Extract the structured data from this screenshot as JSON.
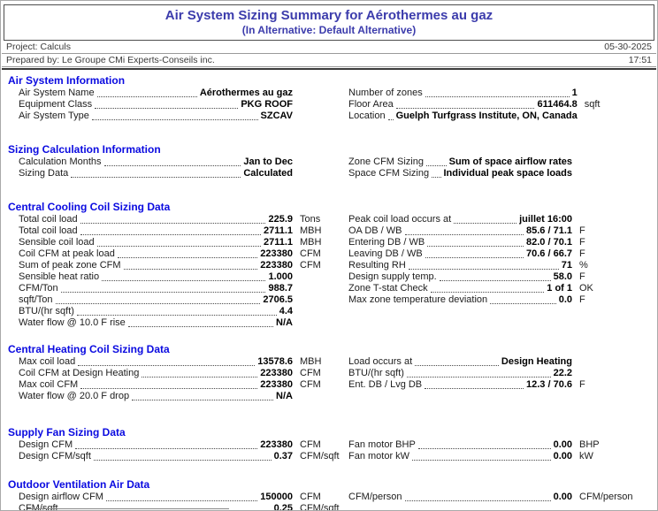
{
  "header": {
    "title": "Air System Sizing Summary for Aérothermes au gaz",
    "subtitle": "(In Alternative: Default Alternative)",
    "project": "Project: Calculs",
    "date": "05-30-2025",
    "prepared_by": "Prepared by: Le Groupe CMi Experts-Conseils inc.",
    "time": "17:51"
  },
  "colors": {
    "title_blue": "#3c3cac",
    "heading_blue": "#0a0ae0"
  },
  "sections": [
    {
      "heading": "Air System Information",
      "left": [
        {
          "label": "Air System Name",
          "value": "Aérothermes au gaz",
          "unit": ""
        },
        {
          "label": "Equipment Class",
          "value": "PKG ROOF",
          "unit": ""
        },
        {
          "label": "Air System Type",
          "value": "SZCAV",
          "unit": ""
        }
      ],
      "right": [
        {
          "label": "Number of zones",
          "value": "1",
          "unit": ""
        },
        {
          "label": "Floor Area",
          "value": "611464.8",
          "unit": "sqft"
        },
        {
          "label": "Location",
          "value": "Guelph Turfgrass Institute, ON, Canada",
          "unit": ""
        }
      ]
    },
    {
      "heading": "Sizing Calculation Information",
      "left": [
        {
          "label": "Calculation Months",
          "value": "Jan to Dec",
          "unit": ""
        },
        {
          "label": "Sizing Data",
          "value": "Calculated",
          "unit": ""
        }
      ],
      "right": [
        {
          "label": "Zone CFM Sizing",
          "value": "Sum of space airflow rates",
          "unit": ""
        },
        {
          "label": "Space CFM Sizing",
          "value": "Individual peak space loads",
          "unit": ""
        }
      ]
    },
    {
      "heading": "Central Cooling Coil Sizing Data",
      "left": [
        {
          "label": "Total coil load",
          "value": "225.9",
          "unit": "Tons"
        },
        {
          "label": "Total coil load",
          "value": "2711.1",
          "unit": "MBH"
        },
        {
          "label": "Sensible coil load",
          "value": "2711.1",
          "unit": "MBH"
        },
        {
          "label": "Coil CFM at peak load",
          "value": "223380",
          "unit": "CFM"
        },
        {
          "label": "Sum of peak zone CFM",
          "value": "223380",
          "unit": "CFM"
        },
        {
          "label": "Sensible heat ratio",
          "value": "1.000",
          "unit": ""
        },
        {
          "label": "CFM/Ton",
          "value": "988.7",
          "unit": ""
        },
        {
          "label": "sqft/Ton",
          "value": "2706.5",
          "unit": ""
        },
        {
          "label": "BTU/(hr sqft)",
          "value": "4.4",
          "unit": ""
        },
        {
          "label": "Water flow @ 10.0 F rise",
          "value": "N/A",
          "unit": ""
        }
      ],
      "right": [
        {
          "label": "Peak coil load occurs at",
          "value": "juillet 16:00",
          "unit": ""
        },
        {
          "label": "OA DB / WB",
          "value": "85.6 / 71.1",
          "unit": "F"
        },
        {
          "label": "Entering DB / WB",
          "value": "82.0 / 70.1",
          "unit": "F"
        },
        {
          "label": "Leaving DB / WB",
          "value": "70.6 / 66.7",
          "unit": "F"
        },
        {
          "label": "Resulting RH",
          "value": "71",
          "unit": "%"
        },
        {
          "label": "Design supply temp.",
          "value": "58.0",
          "unit": "F"
        },
        {
          "label": "Zone T-stat Check",
          "value": "1 of 1",
          "unit": "OK"
        },
        {
          "label": "Max zone temperature deviation",
          "value": "0.0",
          "unit": "F"
        }
      ]
    },
    {
      "heading": "Central Heating Coil Sizing Data",
      "left": [
        {
          "label": "Max coil load",
          "value": "13578.6",
          "unit": "MBH"
        },
        {
          "label": "Coil CFM at Design Heating",
          "value": "223380",
          "unit": "CFM"
        },
        {
          "label": "Max coil CFM",
          "value": "223380",
          "unit": "CFM"
        },
        {
          "label": "Water flow @ 20.0 F drop",
          "value": "N/A",
          "unit": ""
        }
      ],
      "right": [
        {
          "label": "Load occurs at",
          "value": "Design Heating",
          "unit": ""
        },
        {
          "label": "BTU/(hr sqft)",
          "value": "22.2",
          "unit": ""
        },
        {
          "label": "Ent. DB / Lvg DB",
          "value": "12.3 / 70.6",
          "unit": "F"
        }
      ]
    },
    {
      "heading": "Supply Fan Sizing Data",
      "left": [
        {
          "label": "Design CFM",
          "value": "223380",
          "unit": "CFM"
        },
        {
          "label": "Design CFM/sqft",
          "value": "0.37",
          "unit": "CFM/sqft"
        }
      ],
      "right": [
        {
          "label": "Fan motor BHP",
          "value": "0.00",
          "unit": "BHP"
        },
        {
          "label": "Fan motor kW",
          "value": "0.00",
          "unit": "kW"
        }
      ]
    },
    {
      "heading": "Outdoor Ventilation Air Data",
      "left": [
        {
          "label": "Design airflow CFM",
          "value": "150000",
          "unit": "CFM"
        },
        {
          "label": "CFM/sqft",
          "value": "0.25",
          "unit": "CFM/sqft"
        }
      ],
      "right": [
        {
          "label": "CFM/person",
          "value": "0.00",
          "unit": "CFM/person"
        }
      ]
    }
  ]
}
